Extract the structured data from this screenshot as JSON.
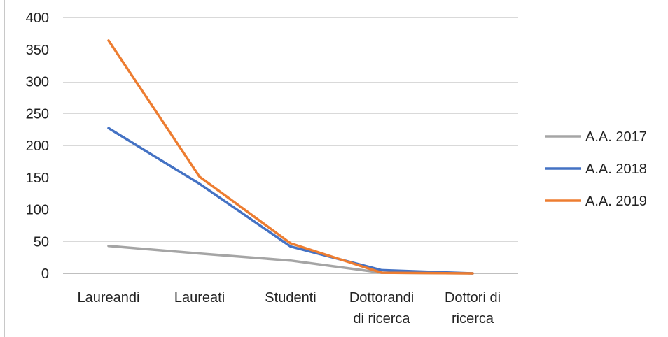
{
  "chart_data": {
    "type": "line",
    "categories": [
      "Laureandi",
      "Laureati",
      "Studenti",
      "Dottorandi di ricerca",
      "Dottori di ricerca"
    ],
    "category_lines": [
      [
        "Laureandi"
      ],
      [
        "Laureati"
      ],
      [
        "Studenti"
      ],
      [
        "Dottorandi",
        "di ricerca"
      ],
      [
        "Dottori di",
        "ricerca"
      ]
    ],
    "series": [
      {
        "name": "A.A. 2017",
        "color": "#a5a5a5",
        "values": [
          43,
          31,
          20,
          1,
          0
        ]
      },
      {
        "name": "A.A. 2018",
        "color": "#4472c4",
        "values": [
          227,
          140,
          42,
          5,
          0
        ]
      },
      {
        "name": "A.A. 2019",
        "color": "#ed7d31",
        "values": [
          364,
          151,
          47,
          1,
          0
        ]
      }
    ],
    "yticks": [
      0,
      50,
      100,
      150,
      200,
      250,
      300,
      350,
      400
    ],
    "ylim": [
      0,
      400
    ],
    "grid": true,
    "legend": "right",
    "title": "",
    "xlabel": "",
    "ylabel": ""
  }
}
